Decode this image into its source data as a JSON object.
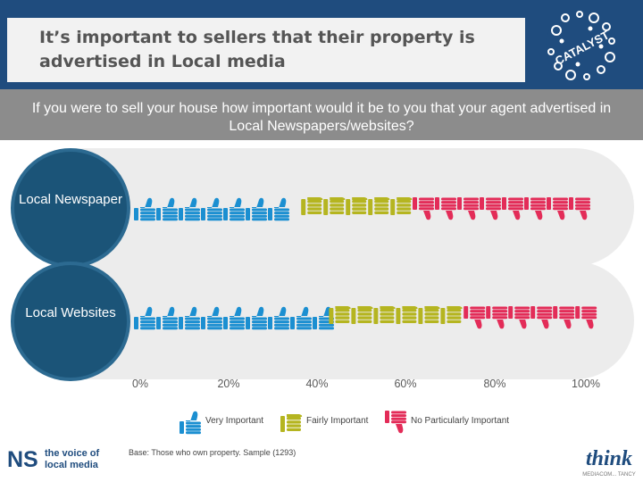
{
  "title": "It’s important to sellers that their property is advertised in Local media",
  "question": "If you were to sell your house how important would it be to you that your agent advertised in Local Newspapers/websites?",
  "logos": {
    "catalyst_text": "CATALYST",
    "ns_mark": "NS",
    "ns_line1": "the voice of",
    "ns_line2": "local media",
    "think_word": "think",
    "think_sub": "MEDIACOM... TANCY"
  },
  "base_note": "Base: Those who own property. Sample (1293)",
  "chart_data": {
    "type": "bar",
    "subtype": "stacked-horizontal-pictogram",
    "categories": [
      "Local Newspaper",
      "Local Websites"
    ],
    "series": [
      {
        "name": "Very Important",
        "values": [
          36,
          42
        ],
        "color": "#1b8fd1",
        "icon": "thumbs-up-icon"
      },
      {
        "name": "Fairly Important",
        "values": [
          24,
          29
        ],
        "color": "#b5b520",
        "icon": "thumbs-sideways-icon"
      },
      {
        "name": "No Particularly Important",
        "values": [
          40,
          29
        ],
        "color": "#e32c58",
        "icon": "thumbs-down-icon"
      }
    ],
    "xlim": [
      0,
      100
    ],
    "xticks": [
      "0%",
      "20%",
      "40%",
      "60%",
      "80%",
      "100%"
    ],
    "legend": "bottom",
    "grid": false
  }
}
